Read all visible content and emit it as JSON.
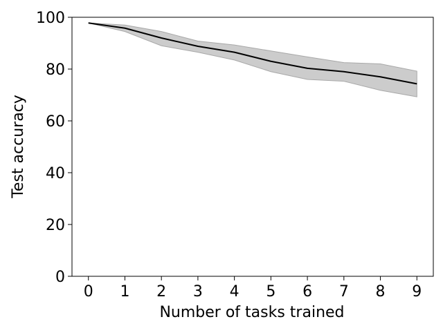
{
  "chart_data": {
    "type": "line",
    "title": "",
    "xlabel": "Number of tasks trained",
    "ylabel": "Test accuracy",
    "x": [
      0,
      1,
      2,
      3,
      4,
      5,
      6,
      7,
      8,
      9
    ],
    "xlim": [
      -0.45,
      9.45
    ],
    "ylim": [
      0,
      100
    ],
    "xticks": [
      0,
      1,
      2,
      3,
      4,
      5,
      6,
      7,
      8,
      9
    ],
    "yticks": [
      0,
      20,
      40,
      60,
      80,
      100
    ],
    "grid": false,
    "series": [
      {
        "values": [
          97.8,
          95.8,
          92.0,
          88.8,
          86.5,
          83.0,
          80.3,
          79.0,
          77.0,
          74.3
        ],
        "lower": [
          97.8,
          94.5,
          89.0,
          86.5,
          83.5,
          79.0,
          76.0,
          75.3,
          71.8,
          69.3
        ],
        "upper": [
          97.8,
          97.0,
          94.5,
          90.8,
          89.3,
          87.0,
          84.7,
          82.5,
          82.0,
          79.2
        ],
        "color": "#000000",
        "band_color": "#bfbfbf"
      }
    ]
  }
}
